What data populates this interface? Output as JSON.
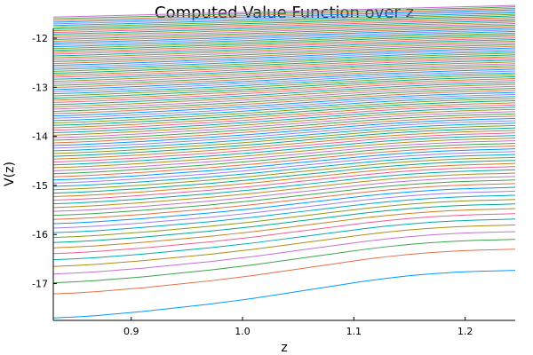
{
  "chart_data": {
    "type": "line",
    "title": "Computed Value Function over z",
    "xlabel": "z",
    "ylabel": "V(z)",
    "xlim": [
      0.83,
      1.245
    ],
    "ylim": [
      -17.75,
      -11.8
    ],
    "xticks": [
      0.9,
      1.0,
      1.1,
      1.2
    ],
    "xtick_labels": [
      "0.9",
      "1.0",
      "1.1",
      "1.2"
    ],
    "yticks": [
      -17,
      -16,
      -15,
      -14,
      -13,
      -12
    ],
    "ytick_labels": [
      "-17",
      "-16",
      "-15",
      "-14",
      "-13",
      "-12"
    ],
    "grid": false,
    "legend": "none",
    "x": [
      0.83,
      0.85,
      0.87,
      0.89,
      0.91,
      0.93,
      0.95,
      0.97,
      0.99,
      1.01,
      1.03,
      1.05,
      1.07,
      1.09,
      1.11,
      1.13,
      1.15,
      1.17,
      1.19,
      1.21,
      1.23,
      1.245
    ],
    "series_count": 100,
    "lowest_series": {
      "values": [
        -17.7,
        -17.68,
        -17.65,
        -17.61,
        -17.57,
        -17.52,
        -17.47,
        -17.42,
        -17.36,
        -17.3,
        -17.23,
        -17.16,
        -17.09,
        -17.02,
        -16.95,
        -16.89,
        -16.84,
        -16.8,
        -16.77,
        -16.75,
        -16.74,
        -16.73
      ]
    },
    "highest_series": {
      "start": -11.57,
      "end": -11.33
    },
    "palette": [
      "#009AFA",
      "#E36F47",
      "#3EA44E",
      "#C371D2",
      "#AC8E18",
      "#00AAAE",
      "#ED5E93",
      "#C68225",
      "#00A98D",
      "#8E971D",
      "#00A9CD",
      "#9B7FE9"
    ]
  }
}
